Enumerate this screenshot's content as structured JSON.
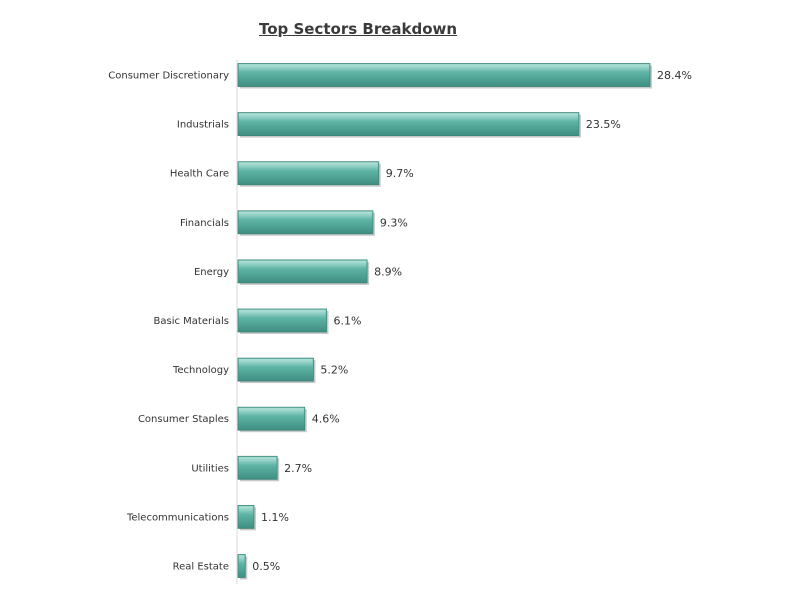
{
  "chart_data": {
    "type": "bar",
    "orientation": "horizontal",
    "title": "Top Sectors Breakdown",
    "xlabel": "",
    "ylabel": "",
    "grid": false,
    "legend": "none",
    "bar_color": "#4fa99a",
    "categories": [
      "Consumer Discretionary",
      "Industrials",
      "Health Care",
      "Financials",
      "Energy",
      "Basic Materials",
      "Technology",
      "Consumer Staples",
      "Utilities",
      "Telecommunications",
      "Real Estate"
    ],
    "values": [
      28.4,
      23.5,
      9.7,
      9.3,
      8.9,
      6.1,
      5.2,
      4.6,
      2.7,
      1.1,
      0.5
    ],
    "value_labels": [
      "28.4%",
      "23.5%",
      "9.7%",
      "9.3%",
      "8.9%",
      "6.1%",
      "5.2%",
      "4.6%",
      "2.7%",
      "1.1%",
      "0.5%"
    ],
    "xlim": [
      0,
      30
    ]
  }
}
